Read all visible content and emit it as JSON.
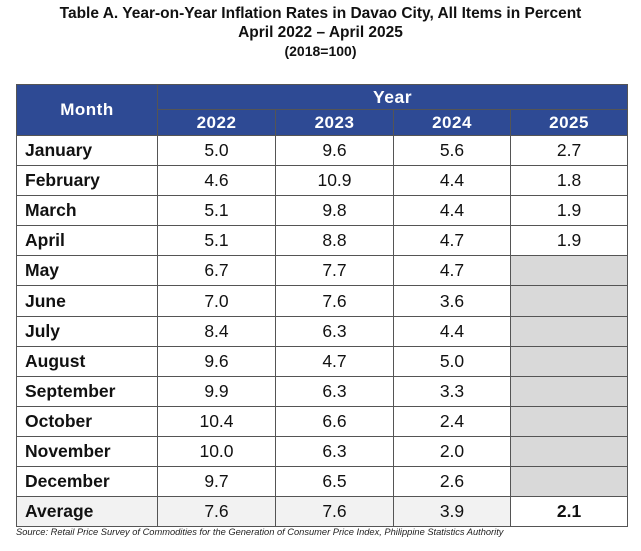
{
  "title": {
    "line1": "Table A. Year-on-Year Inflation Rates in Davao City, All Items in Percent",
    "line2": "April 2022 – April 2025",
    "line3": "(2018=100)"
  },
  "table": {
    "month_header": "Month",
    "year_header": "Year",
    "years": [
      "2022",
      "2023",
      "2024",
      "2025"
    ],
    "rows": [
      {
        "month": "January",
        "values": [
          "5.0",
          "9.6",
          "5.6",
          "2.7"
        ]
      },
      {
        "month": "February",
        "values": [
          "4.6",
          "10.9",
          "4.4",
          "1.8"
        ]
      },
      {
        "month": "March",
        "values": [
          "5.1",
          "9.8",
          "4.4",
          "1.9"
        ]
      },
      {
        "month": "April",
        "values": [
          "5.1",
          "8.8",
          "4.7",
          "1.9"
        ]
      },
      {
        "month": "May",
        "values": [
          "6.7",
          "7.7",
          "4.7",
          ""
        ]
      },
      {
        "month": "June",
        "values": [
          "7.0",
          "7.6",
          "3.6",
          ""
        ]
      },
      {
        "month": "July",
        "values": [
          "8.4",
          "6.3",
          "4.4",
          ""
        ]
      },
      {
        "month": "August",
        "values": [
          "9.6",
          "4.7",
          "5.0",
          ""
        ]
      },
      {
        "month": "September",
        "values": [
          "9.9",
          "6.3",
          "3.3",
          ""
        ]
      },
      {
        "month": "October",
        "values": [
          "10.4",
          "6.6",
          "2.4",
          ""
        ]
      },
      {
        "month": "November",
        "values": [
          "10.0",
          "6.3",
          "2.0",
          ""
        ]
      },
      {
        "month": "December",
        "values": [
          "9.7",
          "6.5",
          "2.6",
          ""
        ]
      }
    ],
    "average": {
      "label": "Average",
      "values": [
        "7.6",
        "7.6",
        "3.9",
        "2.1"
      ]
    }
  },
  "source": "Source: Retail Price Survey of Commodities for the Generation of Consumer Price Index, Philippine Statistics Authority",
  "colors": {
    "header_bg": "#2e4a94",
    "blank_cell": "#d9d9d9"
  }
}
